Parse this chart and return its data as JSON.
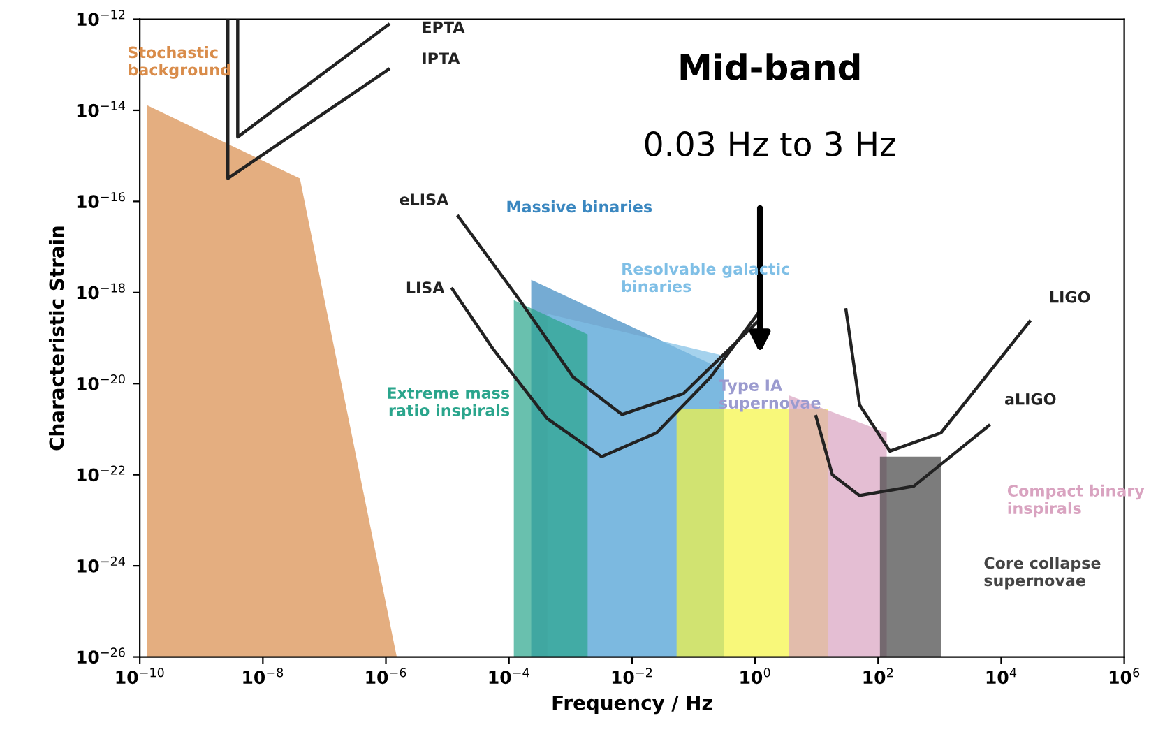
{
  "chart_data": {
    "type": "line",
    "title": "Mid-band",
    "xlabel": "Frequency / Hz",
    "ylabel": "Characteristic Strain",
    "log": "xy",
    "grid": false,
    "marker": "none",
    "line_style": "solid",
    "xlim": [
      1e-10,
      1000000.0
    ],
    "ylim": [
      1e-26,
      1e-12
    ],
    "xticks": [
      {
        "value": 1e-10,
        "label": "10$^{−10}$"
      },
      {
        "value": 1e-08,
        "label": "10$^{−8}$"
      },
      {
        "value": 1e-06,
        "label": "10$^{−6}$"
      },
      {
        "value": 0.0001,
        "label": "10$^{−4}$"
      },
      {
        "value": 0.01,
        "label": "10$^{−2}$"
      },
      {
        "value": 1,
        "label": "10$^{0}$"
      },
      {
        "value": 100,
        "label": "10$^{2}$"
      },
      {
        "value": 10000,
        "label": "10$^{4}$"
      },
      {
        "value": 1000000.0,
        "label": "10$^{6}$"
      }
    ],
    "yticks": [
      {
        "value": 1e-26,
        "label": "10$^{−26}$"
      },
      {
        "value": 1e-24,
        "label": "10$^{−24}$"
      },
      {
        "value": 1e-22,
        "label": "10$^{−22}$"
      },
      {
        "value": 1e-20,
        "label": "10$^{−20}$"
      },
      {
        "value": 1e-18,
        "label": "10$^{−18}$"
      },
      {
        "value": 1e-16,
        "label": "10$^{−16}$"
      },
      {
        "value": 1e-14,
        "label": "10$^{−14}$"
      },
      {
        "value": 1e-12,
        "label": "10$^{−12}$"
      }
    ],
    "series": [
      {
        "name": "EPTA",
        "color": "#222222",
        "x": [
          3.9e-09,
          3.9e-09,
          1.1e-06
        ],
        "values": [
          1e-12,
          2.6e-15,
          7.6e-13
        ]
      },
      {
        "name": "IPTA",
        "color": "#222222",
        "x": [
          2.7e-09,
          2.7e-09,
          1.1e-06
        ],
        "values": [
          1e-12,
          3.2e-16,
          7.9e-14
        ]
      },
      {
        "name": "LISA",
        "color": "#222222",
        "x": [
          1.2e-05,
          5.5e-05,
          0.00042,
          0.0032,
          0.025,
          0.19,
          1.1
        ],
        "values": [
          1.2e-18,
          5.8e-20,
          1.7e-21,
          2.5e-22,
          8.3e-22,
          1.4e-20,
          3.4e-19
        ]
      },
      {
        "name": "eLISA",
        "color": "#222222",
        "x": [
          1.5e-05,
          0.00015,
          0.0011,
          0.0069,
          0.068,
          1.1
        ],
        "values": [
          4.7e-17,
          6.8e-19,
          1.4e-20,
          2.1e-21,
          6e-21,
          2.3e-19
        ]
      },
      {
        "name": "LIGO",
        "color": "#222222",
        "x": [
          30,
          50,
          155,
          1050,
          29000
        ],
        "values": [
          4.2e-19,
          3.4e-21,
          3.3e-22,
          8.3e-22,
          2.3e-19
        ]
      },
      {
        "name": "aLIGO",
        "color": "#222222",
        "x": [
          9.8,
          18,
          50,
          380,
          6300
        ],
        "values": [
          1.9e-21,
          1e-22,
          3.5e-23,
          5.6e-23,
          1.2e-21
        ]
      },
      {
        "name": "Stochastic\nbackground",
        "type": "area",
        "color": "#d98c4a",
        "x": [
          1.3e-10,
          4e-08,
          1.5e-06
        ],
        "values": [
          1.3e-14,
          3.2e-16,
          1e-26
        ]
      },
      {
        "name": "Massive binaries",
        "type": "area",
        "color": "#3a87c0",
        "x": [
          0.00023,
          0.31
        ],
        "values": [
          1.9e-18,
          2e-20
        ]
      },
      {
        "name": "Resolvable galactic\nbinaries",
        "type": "area",
        "color": "#7fbfe6",
        "x": [
          0.00042,
          0.31
        ],
        "values": [
          3.4e-19,
          4.1e-20
        ]
      },
      {
        "name": "Extreme mass\nratio inspirals",
        "type": "area",
        "color": "#2aa58c",
        "x": [
          0.00012,
          0.0019
        ],
        "values": [
          6.8e-19,
          1.2e-19
        ]
      },
      {
        "type": "area",
        "color": "#f5f542",
        "x": [
          0.053,
          15.5
        ],
        "values": [
          2.8e-21,
          2.8e-21
        ]
      },
      {
        "name": "Compact binary\ninspirals",
        "type": "area",
        "color": "#d9a3c0",
        "x": [
          3.5,
          138
        ],
        "values": [
          5.6e-21,
          8.3e-22
        ]
      },
      {
        "name": "Core collapse\nsupernovae",
        "type": "area",
        "color": "#444444",
        "x": [
          107,
          1050
        ],
        "values": [
          2.5e-22,
          2.5e-22
        ]
      }
    ],
    "annotations": [
      "0.03 Hz to 3 Hz",
      "Type IA\nsupernovae"
    ]
  }
}
